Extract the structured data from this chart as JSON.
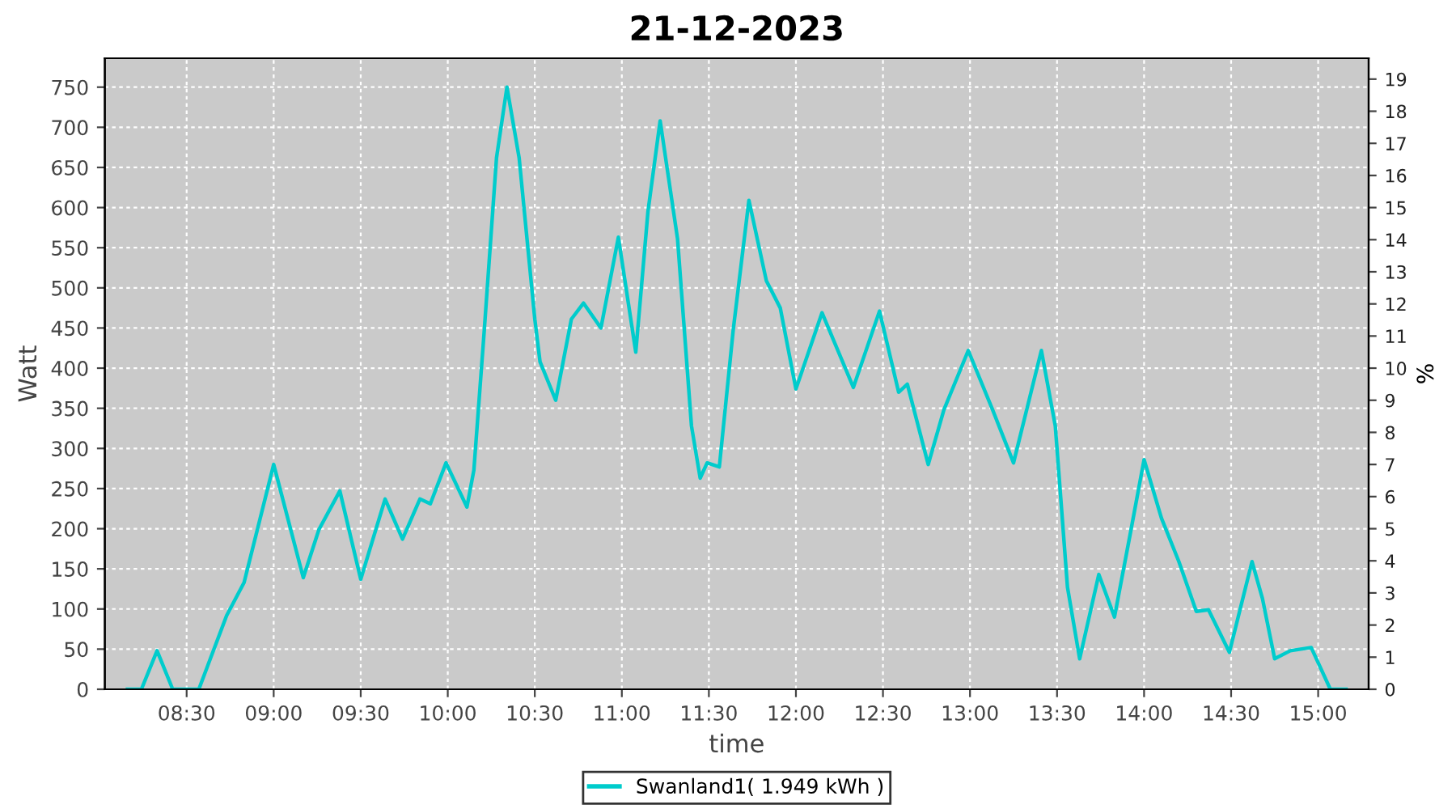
{
  "chart_data": {
    "type": "line",
    "title": "21-12-2023",
    "xlabel": "time",
    "ylabel": "Watt",
    "y2label": "%",
    "x": [
      8.16,
      8.24,
      8.33,
      8.42,
      8.57,
      8.73,
      8.83,
      9.0,
      9.17,
      9.26,
      9.38,
      9.5,
      9.64,
      9.74,
      9.84,
      9.9,
      9.99,
      10.11,
      10.15,
      10.21,
      10.28,
      10.34,
      10.41,
      10.5,
      10.53,
      10.62,
      10.71,
      10.78,
      10.88,
      10.98,
      11.08,
      11.15,
      11.22,
      11.32,
      11.4,
      11.45,
      11.49,
      11.56,
      11.64,
      11.73,
      11.83,
      11.91,
      12.0,
      12.15,
      12.33,
      12.48,
      12.59,
      12.64,
      12.76,
      12.85,
      12.99,
      13.13,
      13.25,
      13.41,
      13.49,
      13.56,
      13.63,
      13.74,
      13.83,
      13.92,
      14.0,
      14.1,
      14.2,
      14.3,
      14.37,
      14.49,
      14.62,
      14.68,
      14.75,
      14.84,
      14.96,
      15.07,
      15.16
    ],
    "series": [
      {
        "name": "Swanland1( 1.949 kWh )",
        "color": "#00cccc",
        "values": [
          0,
          0,
          48,
          0,
          0,
          92,
          133,
          280,
          139,
          199,
          247,
          137,
          237,
          187,
          237,
          231,
          282,
          227,
          273,
          448,
          662,
          750,
          662,
          461,
          408,
          360,
          461,
          481,
          450,
          563,
          420,
          595,
          708,
          561,
          328,
          263,
          282,
          277,
          448,
          609,
          509,
          475,
          374,
          469,
          376,
          471,
          370,
          380,
          280,
          348,
          422,
          348,
          282,
          422,
          328,
          127,
          38,
          143,
          90,
          193,
          286,
          213,
          159,
          97,
          99,
          46,
          159,
          113,
          38,
          48,
          52,
          0,
          0
        ]
      }
    ],
    "xlim": [
      8.03,
      15.29
    ],
    "xticks": [
      {
        "value": 8.5,
        "label": "08:30"
      },
      {
        "value": 9.0,
        "label": "09:00"
      },
      {
        "value": 9.5,
        "label": "09:30"
      },
      {
        "value": 10.0,
        "label": "10:00"
      },
      {
        "value": 10.5,
        "label": "10:30"
      },
      {
        "value": 11.0,
        "label": "11:00"
      },
      {
        "value": 11.5,
        "label": "11:30"
      },
      {
        "value": 12.0,
        "label": "12:00"
      },
      {
        "value": 12.5,
        "label": "12:30"
      },
      {
        "value": 13.0,
        "label": "13:00"
      },
      {
        "value": 13.5,
        "label": "13:30"
      },
      {
        "value": 14.0,
        "label": "14:00"
      },
      {
        "value": 14.5,
        "label": "14:30"
      },
      {
        "value": 15.0,
        "label": "15:00"
      }
    ],
    "ylim": [
      0,
      786
    ],
    "yticks": [
      0,
      50,
      100,
      150,
      200,
      250,
      300,
      350,
      400,
      450,
      500,
      550,
      600,
      650,
      700,
      750
    ],
    "y2lim": [
      0,
      19.65
    ],
    "y2ticks": [
      0,
      1,
      2,
      3,
      4,
      5,
      6,
      7,
      8,
      9,
      10,
      11,
      12,
      13,
      14,
      15,
      16,
      17,
      18,
      19
    ],
    "grid": true,
    "legend": "bottom",
    "marker": "none",
    "line_style": "solid"
  }
}
